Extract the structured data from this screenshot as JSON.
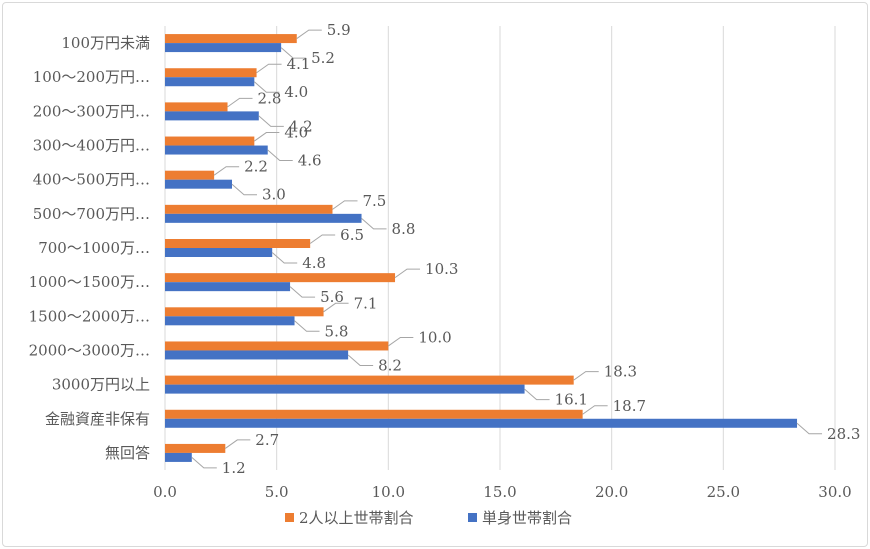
{
  "colors": {
    "orange": "#ed7d31",
    "blue": "#4472c4",
    "grid": "#d9d9d9",
    "leader": "#a6a6a6",
    "text": "#595959"
  },
  "chart_data": {
    "type": "bar",
    "orientation": "horizontal",
    "title": "",
    "xlabel": "",
    "ylabel": "",
    "xlim": [
      0,
      30
    ],
    "xticks": [
      "0.0",
      "5.0",
      "10.0",
      "15.0",
      "20.0",
      "25.0",
      "30.0"
    ],
    "grid": true,
    "legend_position": "bottom",
    "categories": [
      "100万円未満",
      "100〜200万円…",
      "200〜300万円…",
      "300〜400万円…",
      "400〜500万円…",
      "500〜700万円…",
      "700〜1000万…",
      "1000〜1500万…",
      "1500〜2000万…",
      "2000〜3000万…",
      "3000万円以上",
      "金融資産非保有",
      "無回答"
    ],
    "series": [
      {
        "name": "2人以上世帯割合",
        "color": "#ed7d31",
        "values": [
          5.9,
          4.1,
          2.8,
          4.0,
          2.2,
          7.5,
          6.5,
          10.3,
          7.1,
          10.0,
          18.3,
          18.7,
          2.7
        ],
        "labels": [
          "5.9",
          "4.1",
          "2.8",
          "4.0",
          "2.2",
          "7.5",
          "6.5",
          "10.3",
          "7.1",
          "10.0",
          "18.3",
          "18.7",
          "2.7"
        ]
      },
      {
        "name": "単身世帯割合",
        "color": "#4472c4",
        "values": [
          5.2,
          4.0,
          4.2,
          4.6,
          3.0,
          8.8,
          4.8,
          5.6,
          5.8,
          8.2,
          16.1,
          28.3,
          1.2
        ],
        "labels": [
          "5.2",
          "4.0",
          "4.2",
          "4.6",
          "3.0",
          "8.8",
          "4.8",
          "5.6",
          "5.8",
          "8.2",
          "16.1",
          "28.3",
          "1.2"
        ]
      }
    ]
  }
}
